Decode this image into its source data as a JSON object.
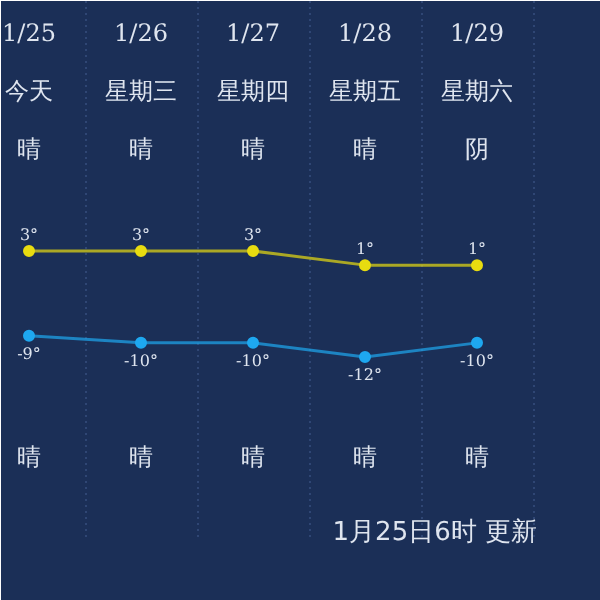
{
  "chart_data": {
    "type": "line",
    "categories": [
      "1/25",
      "1/26",
      "1/27",
      "1/28",
      "1/29"
    ],
    "series": [
      {
        "color": "#e8dc10",
        "values": [
          3,
          3,
          3,
          1,
          1
        ],
        "value_labels": [
          "3°",
          "3°",
          "3°",
          "1°",
          "1°"
        ]
      },
      {
        "color": "#1ea8f0",
        "values": [
          -9,
          -10,
          -10,
          -12,
          -10
        ],
        "value_labels": [
          "-9°",
          "-10°",
          "-10°",
          "-12°",
          "-10°"
        ]
      }
    ],
    "marker": "circle",
    "grid": "x",
    "annotations": [
      "今天",
      "星期三",
      "星期四",
      "星期五",
      "星期六",
      "晴",
      "晴",
      "晴",
      "晴",
      "阴",
      "晴",
      "晴",
      "晴",
      "晴",
      "晴",
      "1月25日6时 更新"
    ]
  }
}
